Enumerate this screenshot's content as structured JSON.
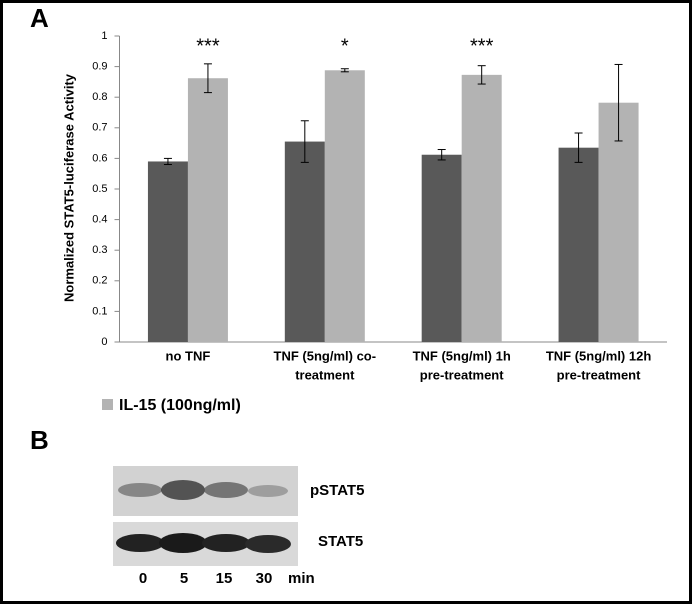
{
  "panel_labels": {
    "a": "A",
    "b": "B"
  },
  "chart_data": {
    "type": "bar",
    "y_label": "Normalized STAT5-luciferase Activity",
    "categories": [
      [
        "no TNF"
      ],
      [
        "TNF (5ng/ml) co-",
        "treatment"
      ],
      [
        "TNF (5ng/ml) 1h",
        "pre-treatment"
      ],
      [
        "TNF (5ng/ml) 12h",
        "pre-treatment"
      ]
    ],
    "series": [
      {
        "color": "#595959",
        "values": [
          0.59,
          0.655,
          0.612,
          0.635
        ],
        "errors": [
          0.01,
          0.068,
          0.017,
          0.048
        ]
      },
      {
        "name": "IL-15 (100ng/ml)",
        "color": "#b3b3b3",
        "values": [
          0.862,
          0.888,
          0.873,
          0.782
        ],
        "errors": [
          0.047,
          0.005,
          0.03,
          0.125
        ],
        "significance": [
          "***",
          "*",
          "***",
          null
        ]
      }
    ],
    "ylim": [
      0,
      1
    ],
    "yticks": [
      0,
      0.1,
      0.2,
      0.3,
      0.4,
      0.5,
      0.6,
      0.7,
      0.8,
      0.9,
      1
    ],
    "grid": false
  },
  "blot": {
    "rows": [
      "pSTAT5",
      "STAT5"
    ],
    "times": [
      "0",
      "5",
      "15",
      "30"
    ],
    "unit": "min"
  }
}
